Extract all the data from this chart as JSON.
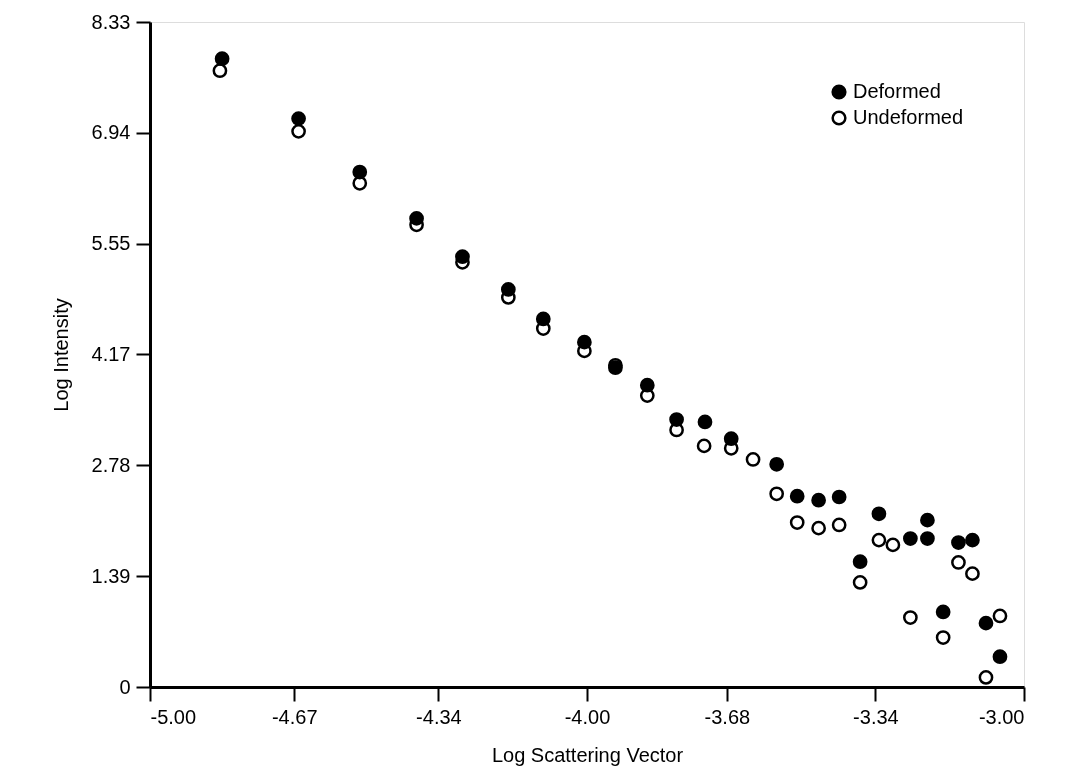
{
  "chart_data": {
    "type": "scatter",
    "xlabel": "Log Scattering Vector",
    "ylabel": "Log Intensity",
    "xlim": [
      -5.0,
      -3.0
    ],
    "xticks": [
      {
        "value": -5.0,
        "label": "-5.00"
      },
      {
        "value": -4.67,
        "label": "-4.67"
      },
      {
        "value": -4.34,
        "label": "-4.34"
      },
      {
        "value": -4.0,
        "label": "-4.00"
      },
      {
        "value": -3.68,
        "label": "-3.68"
      },
      {
        "value": -3.34,
        "label": "-3.34"
      },
      {
        "value": -3.0,
        "label": "-3.00"
      }
    ],
    "ylim": [
      0,
      8.33
    ],
    "yticks": [
      0,
      {
        "value": 1.39,
        "label": "1.39"
      },
      {
        "value": 2.78,
        "label": "2.78"
      },
      {
        "value": 4.17,
        "label": "4.17"
      },
      {
        "value": 5.55,
        "label": "5.55"
      },
      {
        "value": 6.94,
        "label": "6.94"
      },
      {
        "value": 8.33,
        "label": "8.33"
      }
    ],
    "grid": false,
    "legend": "top right",
    "series": [
      {
        "name": "Deformed",
        "color": "#000000",
        "marker": "circle",
        "x": [
          -4.835,
          -4.66,
          -4.52,
          -4.39,
          -4.285,
          -4.18,
          -4.1,
          -4.006,
          -3.935,
          -3.862,
          -3.795,
          -3.73,
          -3.67,
          -3.566,
          -3.519,
          -3.47,
          -3.423,
          -3.375,
          -3.332,
          -3.26,
          -3.221,
          -3.221,
          -3.185,
          -3.15,
          -3.118,
          -3.087,
          -3.055
        ],
        "values": [
          7.87,
          7.12,
          6.45,
          5.87,
          5.39,
          4.98,
          4.61,
          4.32,
          4.0,
          3.78,
          3.35,
          3.32,
          3.11,
          2.79,
          2.39,
          2.34,
          2.38,
          1.57,
          2.17,
          1.86,
          2.09,
          1.86,
          0.94,
          1.81,
          1.84,
          0.8,
          0.38
        ]
      },
      {
        "name": "Undeformed",
        "color": "#000000",
        "marker": "circle open",
        "x": [
          -4.84,
          -4.66,
          -4.52,
          -4.39,
          -4.285,
          -4.18,
          -4.1,
          -4.006,
          -3.935,
          -3.862,
          -3.795,
          -3.732,
          -3.67,
          -3.62,
          -3.566,
          -3.519,
          -3.47,
          -3.423,
          -3.375,
          -3.332,
          -3.3,
          -3.26,
          -3.185,
          -3.15,
          -3.118,
          -3.087,
          -3.055
        ],
        "values": [
          7.72,
          6.96,
          6.31,
          5.79,
          5.32,
          4.88,
          4.49,
          4.21,
          4.03,
          3.65,
          3.22,
          3.02,
          2.99,
          2.85,
          2.42,
          2.06,
          1.99,
          2.03,
          1.31,
          1.84,
          1.78,
          0.87,
          0.62,
          1.56,
          1.42,
          0.12,
          0.89
        ]
      }
    ]
  }
}
